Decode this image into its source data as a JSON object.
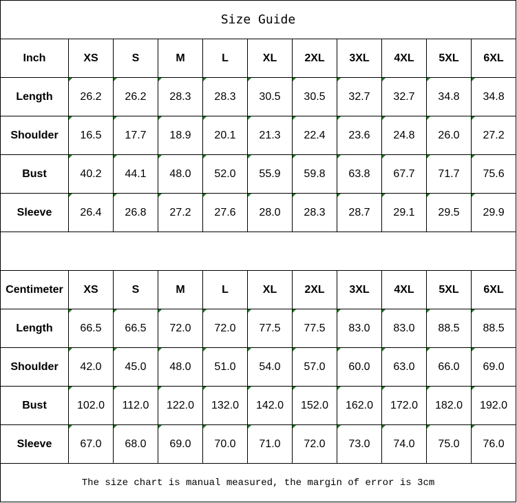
{
  "title": "Size Guide",
  "sizes": [
    "XS",
    "S",
    "M",
    "L",
    "XL",
    "2XL",
    "3XL",
    "4XL",
    "5XL",
    "6XL"
  ],
  "inch": {
    "unit_label": "Inch",
    "rows": [
      {
        "label": "Length",
        "values": [
          "26.2",
          "26.2",
          "28.3",
          "28.3",
          "30.5",
          "30.5",
          "32.7",
          "32.7",
          "34.8",
          "34.8"
        ]
      },
      {
        "label": "Shoulder",
        "values": [
          "16.5",
          "17.7",
          "18.9",
          "20.1",
          "21.3",
          "22.4",
          "23.6",
          "24.8",
          "26.0",
          "27.2"
        ]
      },
      {
        "label": "Bust",
        "values": [
          "40.2",
          "44.1",
          "48.0",
          "52.0",
          "55.9",
          "59.8",
          "63.8",
          "67.7",
          "71.7",
          "75.6"
        ]
      },
      {
        "label": "Sleeve",
        "values": [
          "26.4",
          "26.8",
          "27.2",
          "27.6",
          "28.0",
          "28.3",
          "28.7",
          "29.1",
          "29.5",
          "29.9"
        ]
      }
    ]
  },
  "cm": {
    "unit_label": "Centimeter",
    "rows": [
      {
        "label": "Length",
        "values": [
          "66.5",
          "66.5",
          "72.0",
          "72.0",
          "77.5",
          "77.5",
          "83.0",
          "83.0",
          "88.5",
          "88.5"
        ]
      },
      {
        "label": "Shoulder",
        "values": [
          "42.0",
          "45.0",
          "48.0",
          "51.0",
          "54.0",
          "57.0",
          "60.0",
          "63.0",
          "66.0",
          "69.0"
        ]
      },
      {
        "label": "Bust",
        "values": [
          "102.0",
          "112.0",
          "122.0",
          "132.0",
          "142.0",
          "152.0",
          "162.0",
          "172.0",
          "182.0",
          "192.0"
        ]
      },
      {
        "label": "Sleeve",
        "values": [
          "67.0",
          "68.0",
          "69.0",
          "70.0",
          "71.0",
          "72.0",
          "73.0",
          "74.0",
          "75.0",
          "76.0"
        ]
      }
    ]
  },
  "footer": "The size chart is manual measured, the margin of error is 3cm",
  "colors": {
    "cell_marker": "#1a7f1a",
    "border": "#000000"
  }
}
